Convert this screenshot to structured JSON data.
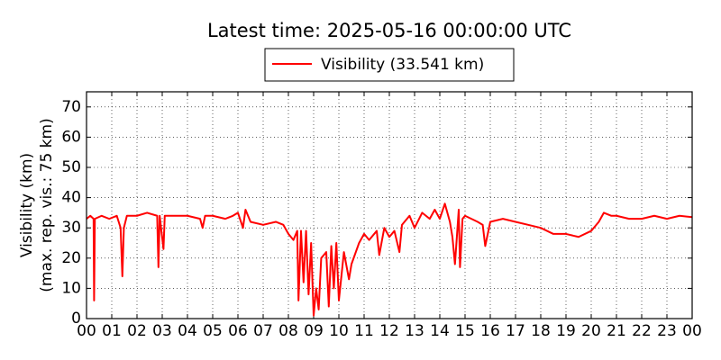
{
  "chart_data": {
    "type": "line",
    "title": "Latest time: 2025-05-16 00:00:00 UTC",
    "y_label": [
      "Visibility (km)",
      "(max. rep. vis.: 75 km)"
    ],
    "x": [
      0,
      0.15,
      0.28,
      0.3,
      0.33,
      0.6,
      0.9,
      1.2,
      1.35,
      1.42,
      1.48,
      1.6,
      2,
      2.4,
      2.8,
      2.85,
      2.9,
      3.05,
      3.1,
      3.5,
      4,
      4.5,
      4.6,
      4.7,
      5,
      5.5,
      5.8,
      6,
      6.2,
      6.3,
      6.5,
      7,
      7.5,
      7.8,
      8,
      8.2,
      8.35,
      8.4,
      8.5,
      8.6,
      8.7,
      8.8,
      8.9,
      9,
      9.1,
      9.2,
      9.3,
      9.5,
      9.6,
      9.7,
      9.8,
      9.9,
      10,
      10.2,
      10.4,
      10.5,
      10.8,
      11,
      11.2,
      11.5,
      11.6,
      11.8,
      12,
      12.2,
      12.4,
      12.5,
      12.8,
      13,
      13.3,
      13.6,
      13.8,
      14,
      14.2,
      14.4,
      14.5,
      14.6,
      14.75,
      14.8,
      14.9,
      15,
      15.5,
      15.7,
      15.8,
      16,
      16.5,
      17,
      17.5,
      18,
      18.5,
      19,
      19.5,
      20,
      20.3,
      20.5,
      20.8,
      21,
      21.5,
      22,
      22.5,
      23,
      23.5,
      24
    ],
    "series": [
      {
        "name": "Visibility (33.541 km)",
        "color": "#ff0000",
        "values": [
          33,
          34,
          33,
          6,
          33,
          34,
          33,
          34,
          30,
          14,
          30,
          34,
          34,
          35,
          34,
          17,
          34,
          23,
          34,
          34,
          34,
          33,
          30,
          34,
          34,
          33,
          34,
          35,
          30,
          36,
          32,
          31,
          32,
          31,
          28,
          26,
          29,
          6,
          29,
          12,
          29,
          8,
          25,
          1,
          10,
          3,
          20,
          22,
          4,
          24,
          10,
          25,
          6,
          22,
          13,
          18,
          25,
          28,
          26,
          29,
          21,
          30,
          27,
          29,
          22,
          31,
          34,
          30,
          35,
          33,
          36,
          33,
          38,
          32,
          27,
          18,
          36,
          17,
          33,
          34,
          32,
          31,
          24,
          32,
          33,
          32,
          31,
          30,
          28,
          28,
          27,
          29,
          32,
          35,
          34,
          34,
          33,
          33,
          34,
          33,
          34,
          33.541
        ]
      }
    ],
    "xlim": [
      0,
      24
    ],
    "xticks": [
      {
        "value": 0,
        "label": "00"
      },
      {
        "value": 1,
        "label": "01"
      },
      {
        "value": 2,
        "label": "02"
      },
      {
        "value": 3,
        "label": "03"
      },
      {
        "value": 4,
        "label": "04"
      },
      {
        "value": 5,
        "label": "05"
      },
      {
        "value": 6,
        "label": "06"
      },
      {
        "value": 7,
        "label": "07"
      },
      {
        "value": 8,
        "label": "08"
      },
      {
        "value": 9,
        "label": "09"
      },
      {
        "value": 10,
        "label": "10"
      },
      {
        "value": 11,
        "label": "11"
      },
      {
        "value": 12,
        "label": "12"
      },
      {
        "value": 13,
        "label": "13"
      },
      {
        "value": 14,
        "label": "14"
      },
      {
        "value": 15,
        "label": "15"
      },
      {
        "value": 16,
        "label": "16"
      },
      {
        "value": 17,
        "label": "17"
      },
      {
        "value": 18,
        "label": "18"
      },
      {
        "value": 19,
        "label": "19"
      },
      {
        "value": 20,
        "label": "20"
      },
      {
        "value": 21,
        "label": "21"
      },
      {
        "value": 22,
        "label": "22"
      },
      {
        "value": 23,
        "label": "23"
      },
      {
        "value": 24,
        "label": "00"
      }
    ],
    "ylim": [
      0,
      75
    ],
    "yticks": [
      0,
      10,
      20,
      30,
      40,
      50,
      60,
      70
    ],
    "grid": true
  }
}
